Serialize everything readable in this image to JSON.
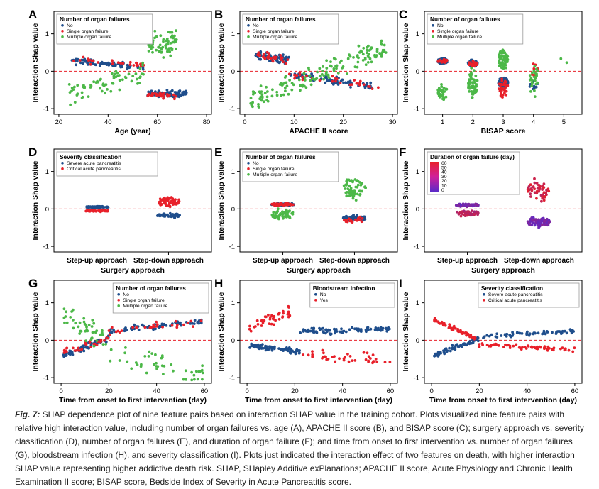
{
  "caption": {
    "label": "Fig. 7:",
    "text": " SHAP dependence plot of nine feature pairs based on interaction SHAP value in the training cohort. Plots visualized nine feature pairs with relative high interaction value, including number of organ failures vs. age (A), APACHE II score (B), and BISAP score (C); surgery approach vs. severity classification (D), number of organ failures (E), and duration of organ failure (F); and time from onset to first intervention vs. number of organ failures (G), bloodstream infection (H), and severity classification (I). Plots just indicated the interaction effect of two features on death, with higher interaction SHAP value representing higher addictive death risk. SHAP, SHapley Additive exPlanations; APACHE II score, Acute Physiology and Chronic Health Examination II score; BISAP score, Bedside Index of Severity in Acute Pancreatitis score."
  },
  "colors": {
    "blue": "#1f4e8c",
    "red": "#e8202a",
    "green": "#4cb848",
    "zero_line": "#e8202a"
  },
  "chart_data": [
    {
      "panel": "A",
      "type": "scatter",
      "xlabel": "Age (year)",
      "ylabel": "Interaction Shap value",
      "xlim": [
        18,
        82
      ],
      "ylim": [
        -1.15,
        1.6
      ],
      "xticks": [
        20,
        40,
        60,
        80
      ],
      "yticks": [
        -1,
        0,
        1
      ],
      "legend_title": "Number of organ failures",
      "legend_position": "top-left",
      "series": [
        {
          "name": "No",
          "color": "#1f4e8c",
          "pattern": "piecewise",
          "segments": [
            {
              "x": [
                24,
                55
              ],
              "y0": 0.28,
              "y1": 0.1
            },
            {
              "x": [
                56,
                72
              ],
              "y0": -0.6,
              "y1": -0.6
            }
          ],
          "spread": 0.08,
          "n": 150
        },
        {
          "name": "Single organ failure",
          "color": "#e8202a",
          "pattern": "piecewise",
          "segments": [
            {
              "x": [
                26,
                55
              ],
              "y0": 0.32,
              "y1": 0.15
            },
            {
              "x": [
                56,
                68
              ],
              "y0": -0.6,
              "y1": -0.65
            }
          ],
          "spread": 0.08,
          "n": 55
        },
        {
          "name": "Multiple organ failure",
          "color": "#4cb848",
          "pattern": "piecewise",
          "segments": [
            {
              "x": [
                24,
                55
              ],
              "y0": -0.6,
              "y1": -0.05
            },
            {
              "x": [
                56,
                68
              ],
              "y0": 0.7,
              "y1": 0.8
            }
          ],
          "spread": 0.3,
          "n": 140
        }
      ]
    },
    {
      "panel": "B",
      "type": "scatter",
      "xlabel": "APACHE II score",
      "ylabel": "Interaction Shap value",
      "xlim": [
        -1,
        31
      ],
      "ylim": [
        -1.15,
        1.6
      ],
      "xticks": [
        0,
        10,
        20,
        30
      ],
      "yticks": [
        -1,
        0,
        1
      ],
      "legend_title": "Number of organ failures",
      "legend_position": "top-left",
      "series": [
        {
          "name": "No",
          "color": "#1f4e8c",
          "pattern": "piecewise",
          "segments": [
            {
              "x": [
                2,
                9
              ],
              "y0": 0.45,
              "y1": 0.3
            },
            {
              "x": [
                9,
                26
              ],
              "y0": -0.1,
              "y1": -0.4
            }
          ],
          "spread": 0.1,
          "n": 150
        },
        {
          "name": "Single organ failure",
          "color": "#e8202a",
          "pattern": "piecewise",
          "segments": [
            {
              "x": [
                2,
                9
              ],
              "y0": 0.45,
              "y1": 0.3
            },
            {
              "x": [
                9,
                28
              ],
              "y0": -0.1,
              "y1": -0.45
            }
          ],
          "spread": 0.1,
          "n": 60
        },
        {
          "name": "Multiple organ failure",
          "color": "#4cb848",
          "pattern": "piecewise",
          "segments": [
            {
              "x": [
                1,
                29
              ],
              "y0": -0.85,
              "y1": 0.65
            }
          ],
          "spread": 0.3,
          "n": 160
        }
      ]
    },
    {
      "panel": "C",
      "type": "scatter",
      "xlabel": "BISAP score",
      "ylabel": "Interaction Shap value",
      "xlim": [
        0.4,
        5.6
      ],
      "ylim": [
        -1.15,
        1.6
      ],
      "xticks": [
        1,
        2,
        3,
        4,
        5
      ],
      "yticks": [
        -1,
        0,
        1
      ],
      "legend_title": "Number of organ failures",
      "legend_position": "top-left",
      "series": [
        {
          "name": "No",
          "color": "#1f4e8c",
          "pattern": "categorical",
          "clusters": [
            {
              "x": 1,
              "y": 0.27,
              "spread": 0.07,
              "n": 70
            },
            {
              "x": 2,
              "y": 0.22,
              "spread": 0.08,
              "n": 60
            },
            {
              "x": 3,
              "y": -0.3,
              "spread": 0.12,
              "n": 70
            },
            {
              "x": 4,
              "y": -0.35,
              "spread": 0.15,
              "n": 10
            }
          ]
        },
        {
          "name": "Single organ failure",
          "color": "#e8202a",
          "pattern": "categorical",
          "clusters": [
            {
              "x": 1,
              "y": 0.28,
              "spread": 0.05,
              "n": 20
            },
            {
              "x": 2,
              "y": 0.2,
              "spread": 0.07,
              "n": 20
            },
            {
              "x": 3,
              "y": -0.45,
              "spread": 0.2,
              "n": 30
            },
            {
              "x": 4,
              "y": 0.0,
              "spread": 0.2,
              "n": 8
            }
          ]
        },
        {
          "name": "Multiple organ failure",
          "color": "#4cb848",
          "pattern": "categorical",
          "clusters": [
            {
              "x": 1,
              "y": -0.55,
              "spread": 0.2,
              "n": 35
            },
            {
              "x": 2,
              "y": -0.35,
              "spread": 0.35,
              "n": 60
            },
            {
              "x": 3,
              "y": 0.3,
              "spread": 0.3,
              "n": 70
            },
            {
              "x": 4,
              "y": -0.2,
              "spread": 0.45,
              "n": 25
            },
            {
              "x": 5,
              "y": 0.4,
              "spread": 0.2,
              "n": 2
            }
          ]
        }
      ]
    },
    {
      "panel": "D",
      "type": "scatter",
      "xlabel": "Surgery approach",
      "ylabel": "Interaction Shap value",
      "xlim": [
        0.4,
        2.6
      ],
      "ylim": [
        -1.15,
        1.6
      ],
      "xcategories": [
        "Step-up approach",
        "Step-down approach"
      ],
      "yticks": [
        -1,
        0,
        1
      ],
      "legend_title": "Severity classification",
      "legend_position": "top-left",
      "series": [
        {
          "name": "Severe acute pancreatitis",
          "color": "#1f4e8c",
          "pattern": "categorical",
          "clusters": [
            {
              "x": 1,
              "y": 0.05,
              "spread": 0.02,
              "n": 60
            },
            {
              "x": 2,
              "y": -0.17,
              "spread": 0.05,
              "n": 60
            }
          ]
        },
        {
          "name": "Critical acute pancreatitis",
          "color": "#e8202a",
          "pattern": "categorical",
          "clusters": [
            {
              "x": 1,
              "y": -0.05,
              "spread": 0.02,
              "n": 60
            },
            {
              "x": 2,
              "y": 0.2,
              "spread": 0.12,
              "n": 60
            }
          ]
        }
      ]
    },
    {
      "panel": "E",
      "type": "scatter",
      "xlabel": "Surgery approach",
      "ylabel": "Interaction Shap value",
      "xlim": [
        0.4,
        2.6
      ],
      "ylim": [
        -1.15,
        1.6
      ],
      "xcategories": [
        "Step-up approach",
        "Step-down approach"
      ],
      "yticks": [
        -1,
        0,
        1
      ],
      "legend_title": "Number of organ failures",
      "legend_position": "top-left",
      "series": [
        {
          "name": "No",
          "color": "#1f4e8c",
          "pattern": "categorical",
          "clusters": [
            {
              "x": 1,
              "y": 0.12,
              "spread": 0.03,
              "n": 80
            },
            {
              "x": 2,
              "y": -0.25,
              "spread": 0.08,
              "n": 70
            }
          ]
        },
        {
          "name": "Single organ failure",
          "color": "#e8202a",
          "pattern": "categorical",
          "clusters": [
            {
              "x": 1,
              "y": 0.12,
              "spread": 0.03,
              "n": 50
            },
            {
              "x": 2,
              "y": -0.28,
              "spread": 0.08,
              "n": 20
            }
          ]
        },
        {
          "name": "Multiple organ failure",
          "color": "#4cb848",
          "pattern": "categorical",
          "clusters": [
            {
              "x": 1,
              "y": -0.15,
              "spread": 0.12,
              "n": 50
            },
            {
              "x": 2,
              "y": 0.55,
              "spread": 0.3,
              "n": 60
            }
          ]
        }
      ]
    },
    {
      "panel": "F",
      "type": "scatter",
      "xlabel": "Surgery approach",
      "ylabel": "Interaction Shap value",
      "xlim": [
        0.4,
        2.6
      ],
      "ylim": [
        -1.15,
        1.6
      ],
      "xcategories": [
        "Step-up approach",
        "Step-down approach"
      ],
      "yticks": [
        -1,
        0,
        1
      ],
      "legend_title": "Duration of organ failure (day)",
      "legend_position": "top-left",
      "colorbar": {
        "min": 0,
        "max": 60,
        "ticks": [
          "60",
          "50",
          "40",
          "30",
          "20",
          "10",
          "0"
        ],
        "low_color": "#5b2ac8",
        "high_color": "#e8202a"
      },
      "series": [
        {
          "name": "Duration of organ failure",
          "pattern": "categorical-gradient",
          "clusters": [
            {
              "x": 1,
              "y": 0.1,
              "spread": 0.03,
              "n": 80,
              "value": 2
            },
            {
              "x": 1,
              "y": -0.12,
              "spread": 0.07,
              "n": 50,
              "value": 30
            },
            {
              "x": 2,
              "y": -0.35,
              "spread": 0.12,
              "n": 90,
              "value": 2
            },
            {
              "x": 2,
              "y": 0.5,
              "spread": 0.25,
              "n": 50,
              "value": 40
            }
          ]
        }
      ]
    },
    {
      "panel": "G",
      "type": "scatter",
      "xlabel": "Time from onset to first intervention (day)",
      "ylabel": "Interaction Shap value",
      "xlim": [
        -3,
        63
      ],
      "ylim": [
        -1.15,
        1.6
      ],
      "xticks": [
        0,
        20,
        40,
        60
      ],
      "yticks": [
        -1,
        0,
        1
      ],
      "legend_title": "Number of organ failures",
      "legend_position": "top-right",
      "series": [
        {
          "name": "No",
          "color": "#1f4e8c",
          "pattern": "piecewise",
          "segments": [
            {
              "x": [
                1,
                20
              ],
              "y0": -0.4,
              "y1": 0.05
            },
            {
              "x": [
                20,
                60
              ],
              "y0": 0.25,
              "y1": 0.5
            }
          ],
          "spread": 0.08,
          "n": 130
        },
        {
          "name": "Single organ failure",
          "color": "#e8202a",
          "pattern": "piecewise",
          "segments": [
            {
              "x": [
                1,
                20
              ],
              "y0": -0.3,
              "y1": 0.0
            },
            {
              "x": [
                20,
                60
              ],
              "y0": 0.25,
              "y1": 0.5
            }
          ],
          "spread": 0.1,
          "n": 60
        },
        {
          "name": "Multiple organ failure",
          "color": "#4cb848",
          "pattern": "piecewise",
          "segments": [
            {
              "x": [
                1,
                20
              ],
              "y0": 0.6,
              "y1": 0.0
            },
            {
              "x": [
                20,
                60
              ],
              "y0": -0.3,
              "y1": -0.95
            }
          ],
          "spread": 0.3,
          "n": 90
        }
      ]
    },
    {
      "panel": "H",
      "type": "scatter",
      "xlabel": "Time from onset to first intervention (day)",
      "ylabel": "Interaction Shap value",
      "xlim": [
        -3,
        63
      ],
      "ylim": [
        -1.15,
        1.6
      ],
      "xticks": [
        0,
        20,
        40,
        60
      ],
      "yticks": [
        -1,
        0,
        1
      ],
      "legend_title": "Bloodstream infection",
      "legend_position": "top-right",
      "series": [
        {
          "name": "No",
          "color": "#1f4e8c",
          "pattern": "piecewise",
          "segments": [
            {
              "x": [
                1,
                22
              ],
              "y0": -0.15,
              "y1": -0.3
            },
            {
              "x": [
                22,
                60
              ],
              "y0": 0.25,
              "y1": 0.3
            }
          ],
          "spread": 0.08,
          "n": 180
        },
        {
          "name": "Yes",
          "color": "#e8202a",
          "pattern": "piecewise",
          "segments": [
            {
              "x": [
                1,
                18
              ],
              "y0": 0.35,
              "y1": 0.75
            },
            {
              "x": [
                20,
                60
              ],
              "y0": -0.4,
              "y1": -0.55
            }
          ],
          "spread": 0.15,
          "n": 80
        }
      ]
    },
    {
      "panel": "I",
      "type": "scatter",
      "xlabel": "Time from onset to first intervention (day)",
      "ylabel": "Interaction Shap value",
      "xlim": [
        -3,
        63
      ],
      "ylim": [
        -1.15,
        1.6
      ],
      "xticks": [
        0,
        20,
        40,
        60
      ],
      "yticks": [
        -1,
        0,
        1
      ],
      "legend_title": "Severity classification",
      "legend_position": "top-right",
      "series": [
        {
          "name": "Severe acute pancreatitis",
          "color": "#1f4e8c",
          "pattern": "piecewise",
          "segments": [
            {
              "x": [
                1,
                20
              ],
              "y0": -0.4,
              "y1": 0.05
            },
            {
              "x": [
                20,
                60
              ],
              "y0": 0.1,
              "y1": 0.25
            }
          ],
          "spread": 0.06,
          "n": 130
        },
        {
          "name": "Critical acute pancreatitis",
          "color": "#e8202a",
          "pattern": "piecewise",
          "segments": [
            {
              "x": [
                1,
                20
              ],
              "y0": 0.55,
              "y1": 0.0
            },
            {
              "x": [
                20,
                60
              ],
              "y0": -0.12,
              "y1": -0.25
            }
          ],
          "spread": 0.06,
          "n": 130
        }
      ]
    }
  ]
}
